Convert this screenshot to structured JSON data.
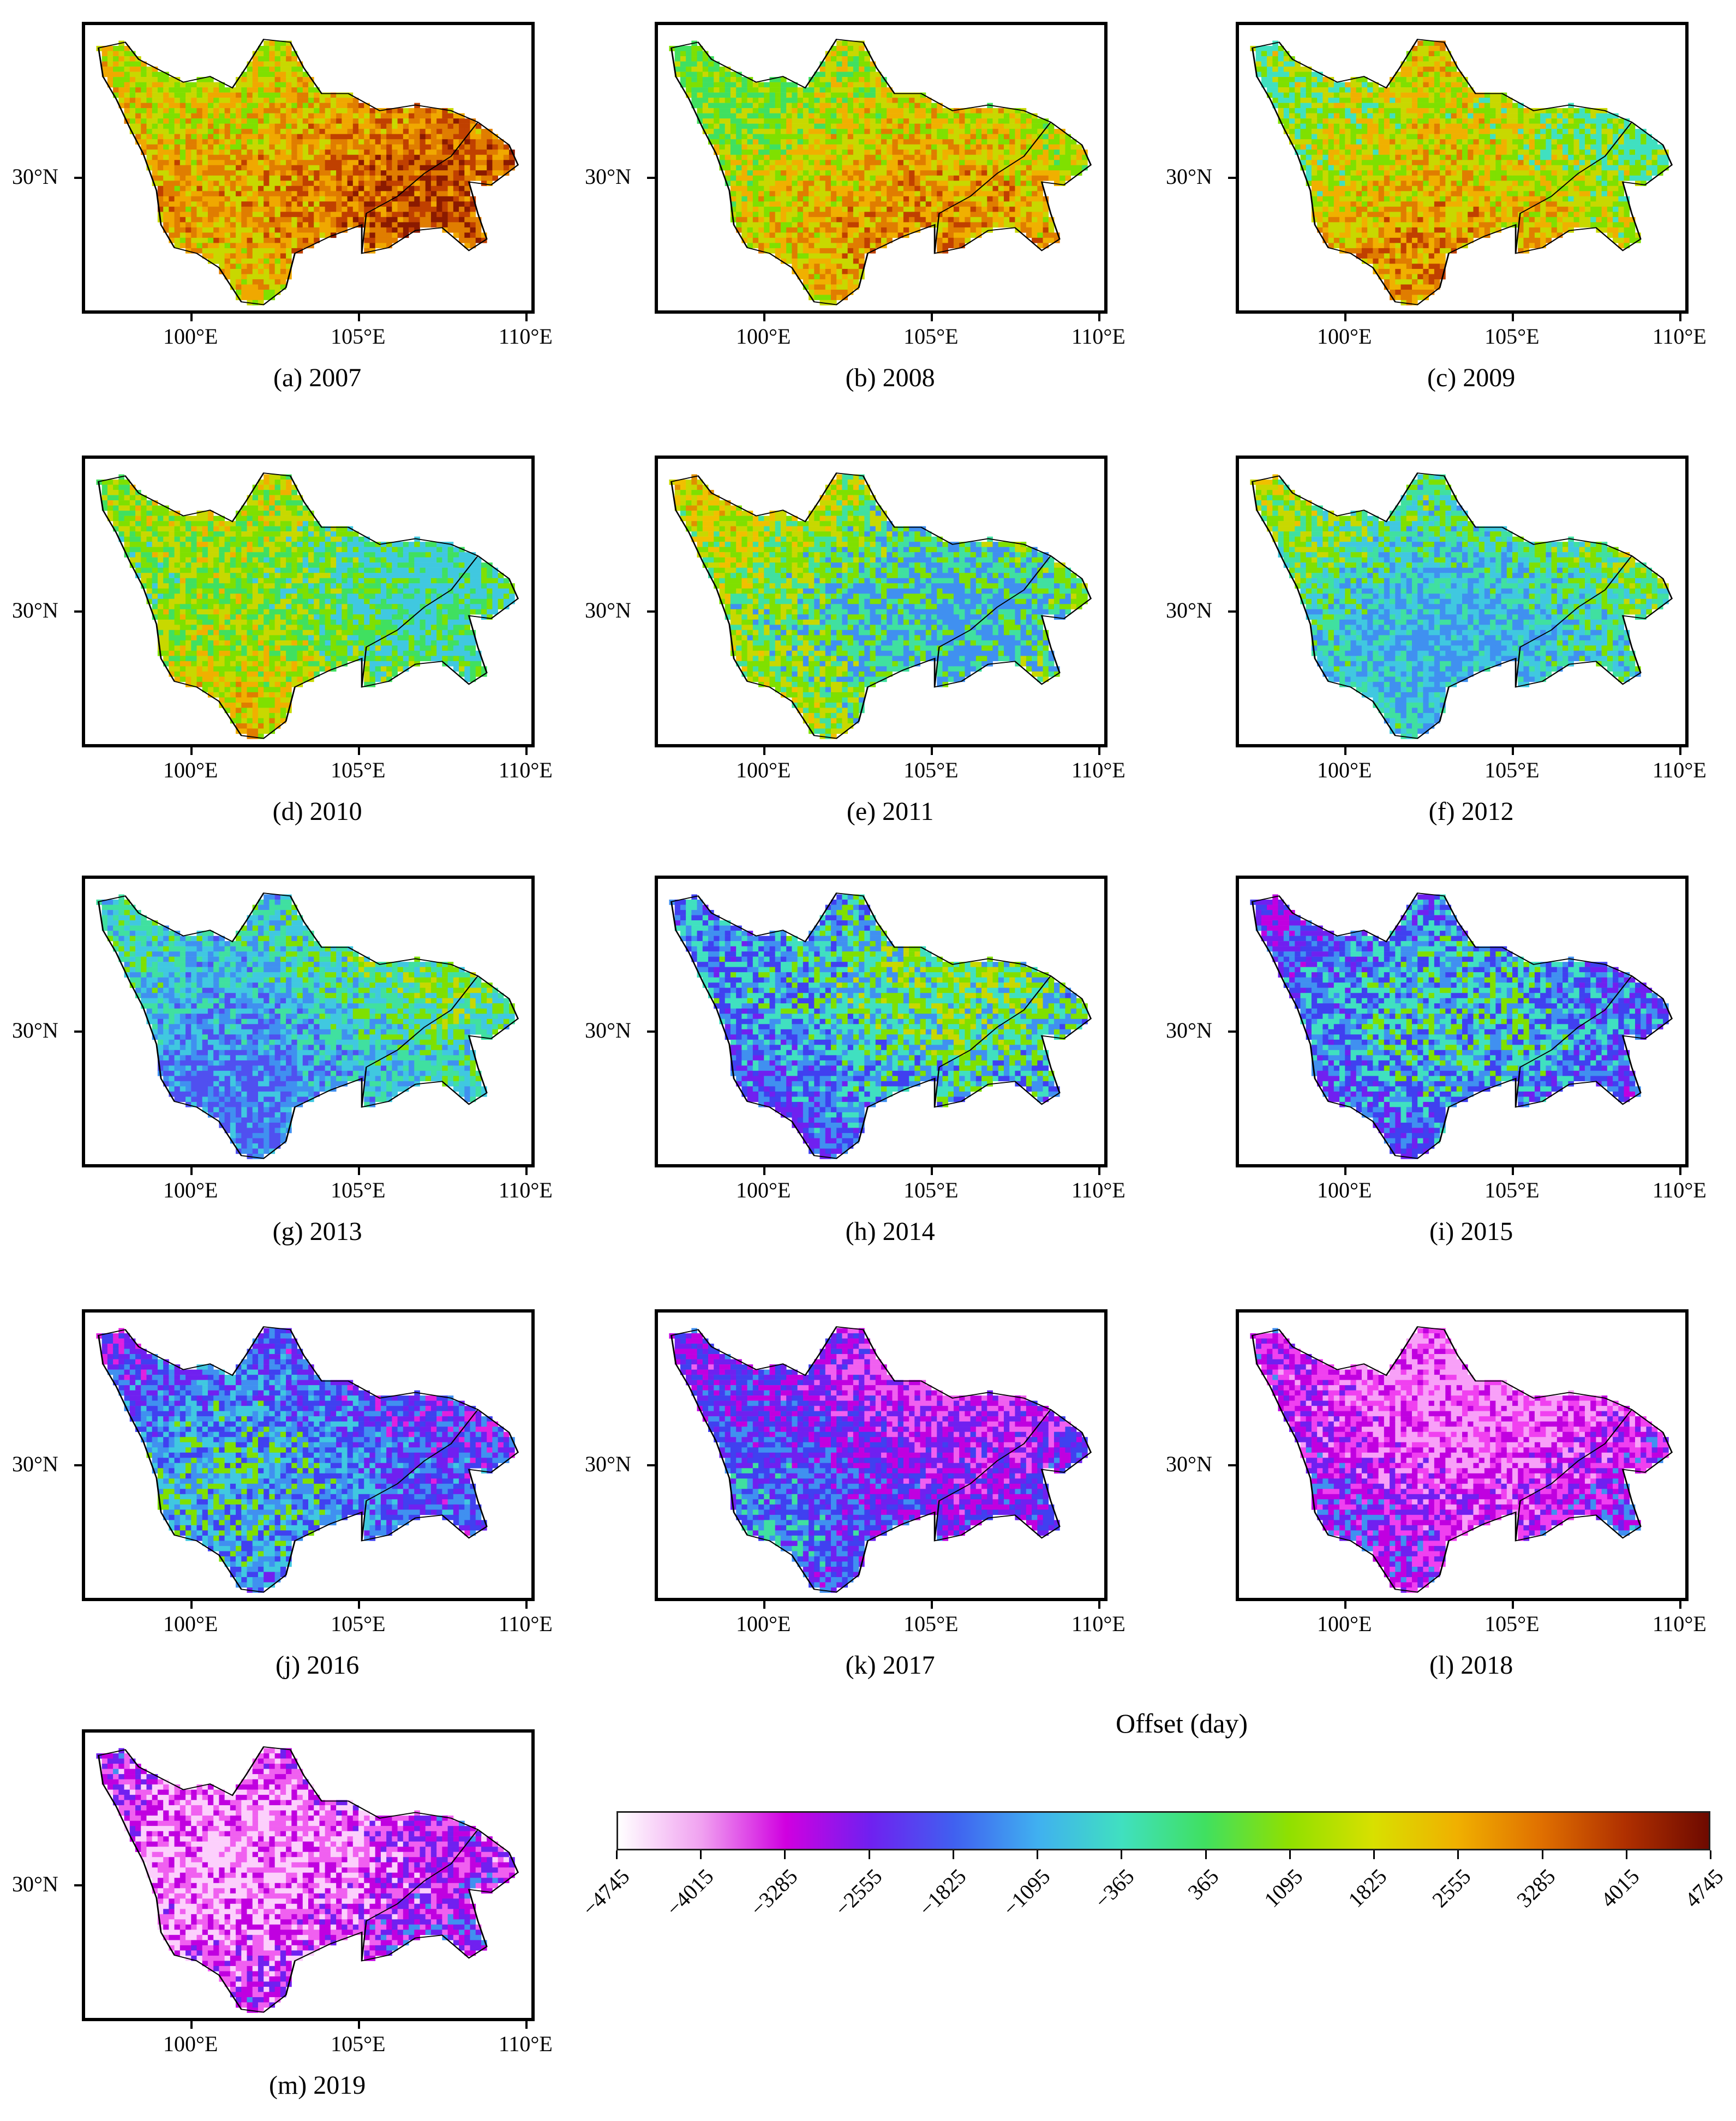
{
  "axis_labels": {
    "lat": "30°N",
    "lon": [
      "100°E",
      "105°E",
      "110°E"
    ]
  },
  "panels": [
    {
      "caption": "(a) 2007",
      "year": 2007,
      "palette": [
        "#8b1a00",
        "#c04000",
        "#e07d00",
        "#f0a800",
        "#c8d800",
        "#7fe000"
      ]
    },
    {
      "caption": "(b) 2008",
      "year": 2008,
      "palette": [
        "#c04000",
        "#e07d00",
        "#f0b000",
        "#c8d800",
        "#7fe000",
        "#40e060"
      ]
    },
    {
      "caption": "(c) 2009",
      "year": 2009,
      "palette": [
        "#c04000",
        "#e07d00",
        "#f0b000",
        "#c8d800",
        "#7fe000",
        "#40e0c0"
      ]
    },
    {
      "caption": "(d) 2010",
      "year": 2010,
      "palette": [
        "#e07d00",
        "#f0b000",
        "#c8d800",
        "#7fe000",
        "#40e060",
        "#40c8e0"
      ]
    },
    {
      "caption": "(e) 2011",
      "year": 2011,
      "palette": [
        "#e09000",
        "#f0c000",
        "#c8d800",
        "#7fe000",
        "#40e0a0",
        "#4090f0"
      ]
    },
    {
      "caption": "(f) 2012",
      "year": 2012,
      "palette": [
        "#f0c000",
        "#c8d800",
        "#7fe000",
        "#40e0a0",
        "#40c8e0",
        "#4090f0"
      ]
    },
    {
      "caption": "(g) 2013",
      "year": 2013,
      "palette": [
        "#c8d800",
        "#7fe000",
        "#40e0a0",
        "#40c8e0",
        "#4090f0",
        "#5050f0"
      ]
    },
    {
      "caption": "(h) 2014",
      "year": 2014,
      "palette": [
        "#c8d800",
        "#7fe000",
        "#40e0c0",
        "#4090f0",
        "#4040f0",
        "#7020f0"
      ]
    },
    {
      "caption": "(i) 2015",
      "year": 2015,
      "palette": [
        "#7fe000",
        "#40e0c0",
        "#4090f0",
        "#4040f0",
        "#7020f0",
        "#c000e0"
      ]
    },
    {
      "caption": "(j) 2016",
      "year": 2016,
      "palette": [
        "#7fe000",
        "#40c8e0",
        "#4090f0",
        "#4040f0",
        "#7020f0",
        "#e020e0"
      ]
    },
    {
      "caption": "(k) 2017",
      "year": 2017,
      "palette": [
        "#40e0a0",
        "#4090f0",
        "#4040f0",
        "#7020f0",
        "#c000e0",
        "#f060f0"
      ]
    },
    {
      "caption": "(l) 2018",
      "year": 2018,
      "palette": [
        "#40c8e0",
        "#4090f0",
        "#7020f0",
        "#c000e0",
        "#f040f0",
        "#f8a0f8"
      ]
    },
    {
      "caption": "(m) 2019",
      "year": 2019,
      "palette": [
        "#40c8e0",
        "#4090f0",
        "#7020f0",
        "#c000e0",
        "#f060f0",
        "#fcd0fc"
      ]
    }
  ],
  "legend": {
    "title": "Offset (day)",
    "ticks": [
      "−4745",
      "−4015",
      "−3285",
      "−2555",
      "−1825",
      "−1095",
      "−365",
      "365",
      "1095",
      "1825",
      "2555",
      "3285",
      "4015",
      "4745"
    ],
    "colors": [
      "#ffffff",
      "#f0a0f0",
      "#d000e0",
      "#7020f0",
      "#4060f0",
      "#40b0f0",
      "#40e0c0",
      "#40e060",
      "#90e000",
      "#d8e000",
      "#f0b000",
      "#e07000",
      "#b03000",
      "#6e0a00"
    ]
  }
}
